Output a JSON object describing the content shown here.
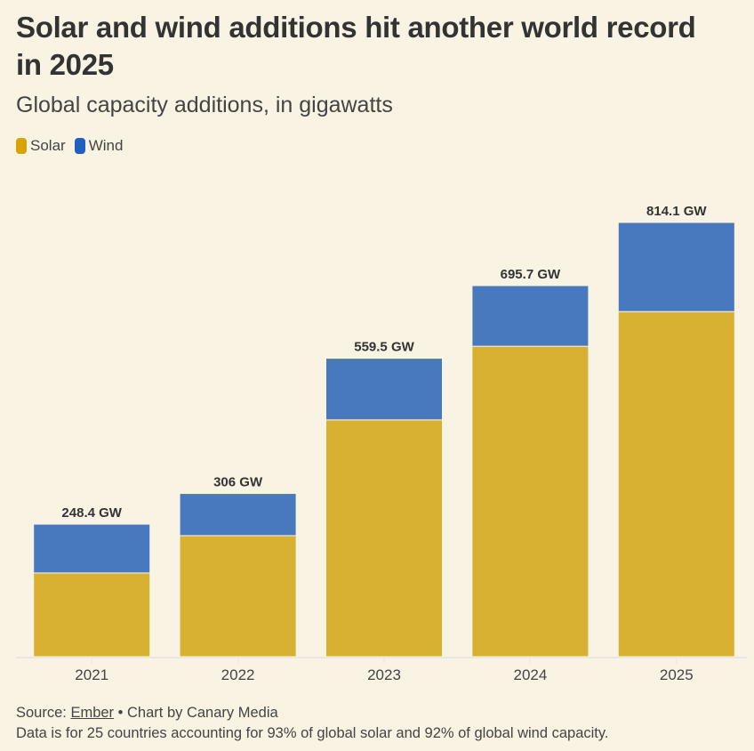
{
  "chart_data": {
    "type": "bar",
    "stacked": true,
    "title": "Solar and wind additions hit another world record in 2025",
    "subtitle": "Global capacity additions, in gigawatts",
    "xlabel": "",
    "ylabel": "",
    "categories": [
      "2021",
      "2022",
      "2023",
      "2024",
      "2025"
    ],
    "series": [
      {
        "name": "Solar",
        "color": "#d8b132",
        "values": [
          157,
          227,
          444,
          582,
          647
        ]
      },
      {
        "name": "Wind",
        "color": "#4878bd",
        "values": [
          91.4,
          79,
          115.5,
          113.7,
          167.1
        ]
      }
    ],
    "totals": [
      248.4,
      306,
      559.5,
      695.7,
      814.1
    ],
    "total_labels": [
      "248.4 GW",
      "306 GW",
      "559.5 GW",
      "695.7 GW",
      "814.1 GW"
    ],
    "ylim": [
      0,
      814.1
    ],
    "grid": false,
    "legend": "top-left"
  },
  "legend": {
    "items": [
      {
        "label": "Solar",
        "color": "#d8b132"
      },
      {
        "label": "Wind",
        "color": "#2160bf"
      }
    ]
  },
  "footer": {
    "source_prefix": "Source: ",
    "source_link": "Ember",
    "source_suffix": " • Chart by Canary Media",
    "note": "Data is for 25 countries accounting for 93% of global solar and 92% of global wind capacity."
  }
}
